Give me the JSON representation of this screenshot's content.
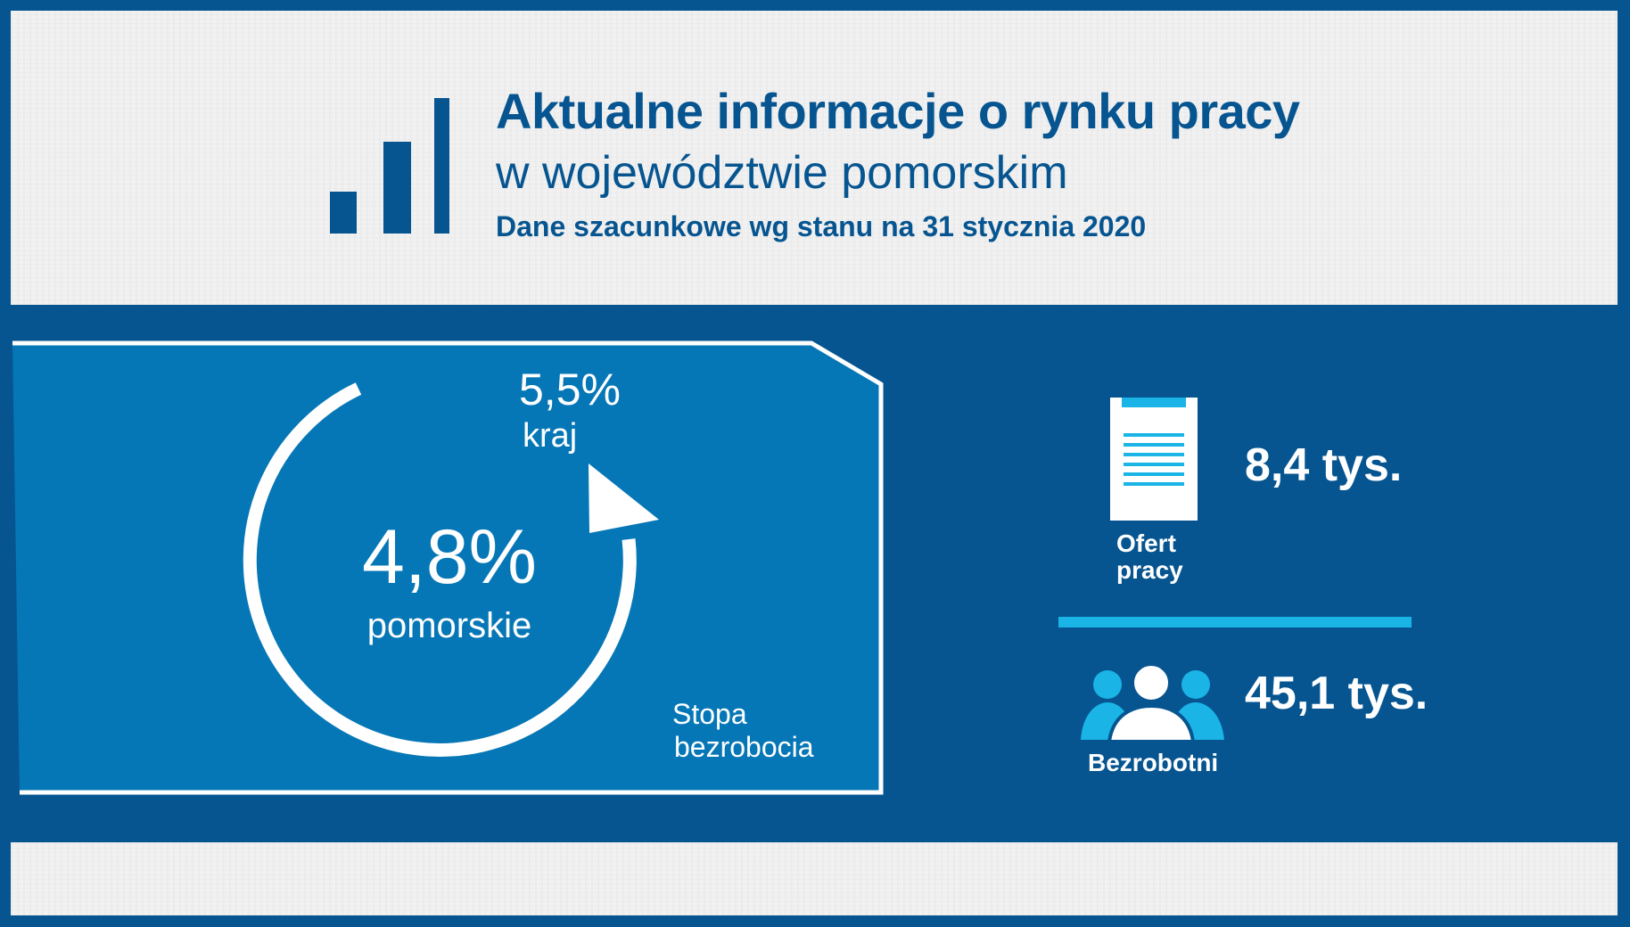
{
  "header": {
    "title": "Aktualne informacje o rynku pracy",
    "subtitle": "w województwie pomorskim",
    "date_note": "Dane szacunkowe wg stanu na 31 stycznia 2020",
    "logo_icon": "bar-chart-icon"
  },
  "unemployment_rate": {
    "regional_value": "4,8%",
    "regional_label": "pomorskie",
    "national_value": "5,5%",
    "national_label": "kraj",
    "caption_line1": "Stopa",
    "caption_line2": "bezrobocia",
    "icon": "circular-arrow-icon"
  },
  "job_offers": {
    "value": "8,4 tys.",
    "label_line1": "Ofert",
    "label_line2": "pracy",
    "icon": "document-icon"
  },
  "unemployed": {
    "value": "45,1 tys.",
    "label": "Bezrobotni",
    "icon": "people-icon"
  },
  "colors": {
    "background": "#065590",
    "rate_panel": "#0677b6",
    "accent": "#1ab4e6",
    "light_panel": "#f1f1f1"
  }
}
